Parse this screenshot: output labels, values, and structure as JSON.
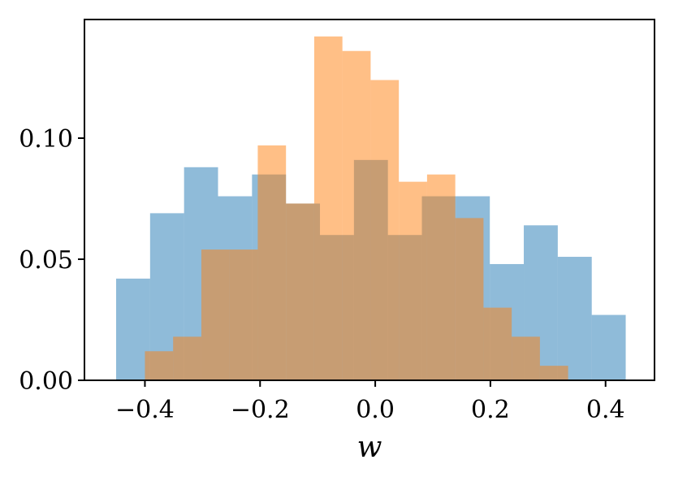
{
  "chart_data": {
    "type": "histogram",
    "title": "",
    "xlabel": "w",
    "ylabel": "",
    "xlim": [
      -0.505,
      0.485
    ],
    "ylim": [
      0.0,
      0.149
    ],
    "grid": false,
    "legend": "none",
    "x_ticks": [
      {
        "value": -0.4,
        "label": "−0.4"
      },
      {
        "value": -0.2,
        "label": "−0.2"
      },
      {
        "value": 0.0,
        "label": "0.0"
      },
      {
        "value": 0.2,
        "label": "0.2"
      },
      {
        "value": 0.4,
        "label": "0.4"
      }
    ],
    "y_ticks": [
      {
        "value": 0.0,
        "label": "0.00"
      },
      {
        "value": 0.05,
        "label": "0.05"
      },
      {
        "value": 0.1,
        "label": "0.10"
      }
    ],
    "series": [
      {
        "color": "#1f77b4",
        "opacity": 0.5,
        "edges": [
          -0.45,
          -0.391,
          -0.332,
          -0.273,
          -0.214,
          -0.155,
          -0.096,
          -0.037,
          0.022,
          0.081,
          0.14,
          0.199,
          0.258,
          0.317,
          0.376,
          0.435
        ],
        "values": [
          0.042,
          0.069,
          0.088,
          0.076,
          0.085,
          0.073,
          0.06,
          0.091,
          0.06,
          0.076,
          0.076,
          0.048,
          0.064,
          0.051,
          0.027
        ]
      },
      {
        "color": "#ff7f0e",
        "opacity": 0.5,
        "edges": [
          -0.4,
          -0.351,
          -0.302,
          -0.253,
          -0.204,
          -0.155,
          -0.106,
          -0.057,
          -0.008,
          0.041,
          0.09,
          0.139,
          0.188,
          0.237,
          0.286,
          0.335,
          0.384
        ],
        "values": [
          0.012,
          0.018,
          0.054,
          0.054,
          0.097,
          0.073,
          0.142,
          0.136,
          0.124,
          0.082,
          0.085,
          0.067,
          0.03,
          0.018,
          0.006,
          0.0
        ]
      }
    ]
  }
}
